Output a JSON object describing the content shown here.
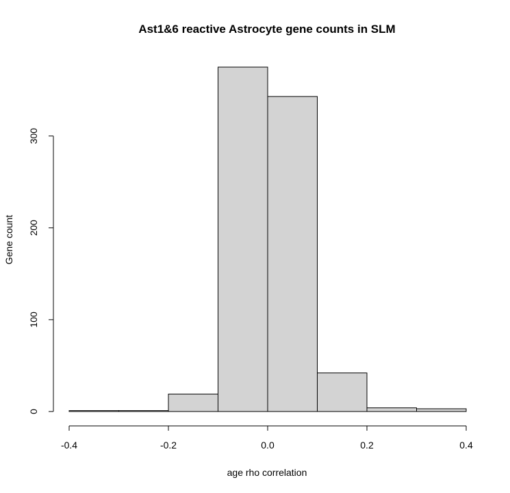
{
  "chart_data": {
    "type": "bar",
    "title": "Ast1&6 reactive Astrocyte gene counts in SLM",
    "xlabel": "age rho correlation",
    "ylabel": "Gene count",
    "bins": [
      {
        "x0": -0.4,
        "x1": -0.3,
        "count": 1
      },
      {
        "x0": -0.3,
        "x1": -0.2,
        "count": 1
      },
      {
        "x0": -0.2,
        "x1": -0.1,
        "count": 19
      },
      {
        "x0": -0.1,
        "x1": 0.0,
        "count": 375
      },
      {
        "x0": 0.0,
        "x1": 0.1,
        "count": 343
      },
      {
        "x0": 0.1,
        "x1": 0.2,
        "count": 42
      },
      {
        "x0": 0.2,
        "x1": 0.3,
        "count": 4
      },
      {
        "x0": 0.3,
        "x1": 0.4,
        "count": 3
      }
    ],
    "xlim": [
      -0.4,
      0.4
    ],
    "ylim": [
      0,
      375
    ],
    "x_ticks": [
      -0.4,
      -0.2,
      0.0,
      0.2,
      0.4
    ],
    "x_tick_labels": [
      "-0.4",
      "-0.2",
      "0.0",
      "0.2",
      "0.4"
    ],
    "y_ticks": [
      0,
      100,
      200,
      300
    ],
    "y_tick_labels": [
      "0",
      "100",
      "200",
      "300"
    ],
    "bar_fill": "#d3d3d3",
    "grid": false,
    "legend": "none"
  }
}
